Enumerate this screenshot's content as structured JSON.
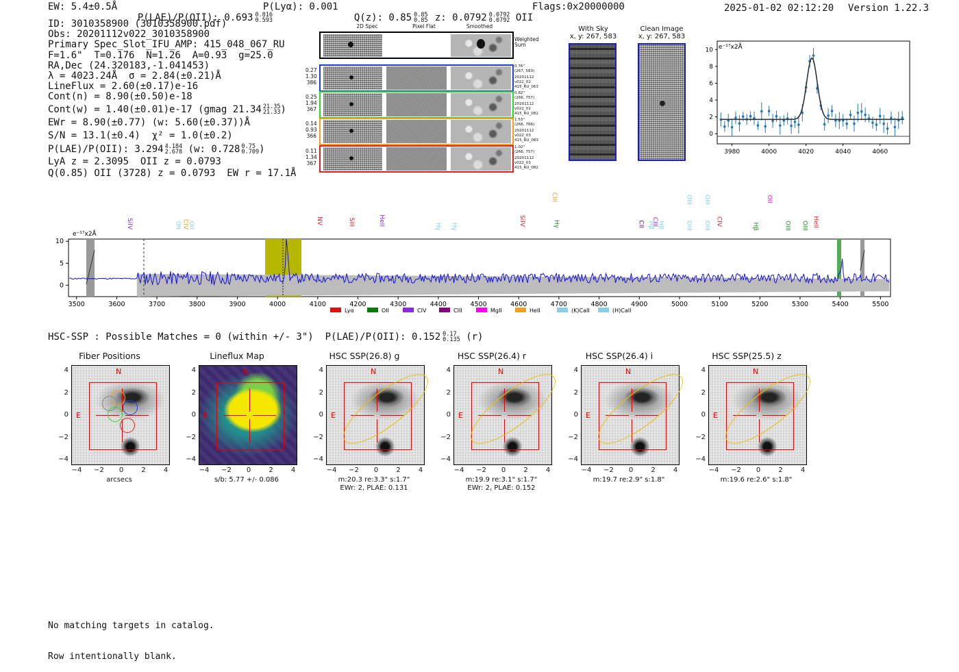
{
  "header": {
    "ew": "EW: 5.4±0.5Å",
    "plae_label": "P(LAE)/P(OII): 0.693",
    "plae_hi": "0.816",
    "plae_lo": "0.593",
    "plya": "P(Lyα): 0.001",
    "q_label": "Q(z): 0.85",
    "q_hi": "0.85",
    "q_lo": "0.85",
    "z_label": "z: 0.0792",
    "z_hi": "0.0792",
    "z_lo": "0.0792",
    "z_line": "OII",
    "flags": "Flags:0x20000000",
    "timestamp": "2025-01-02 02:12:20",
    "version": "Version 1.22.3"
  },
  "info": {
    "lines": [
      "ID: 3010358900 (3010358900.pdf)",
      "Obs: 20201112v022_3010358900",
      "Primary Spec_Slot_IFU_AMP: 415_048_067_RU",
      "F=1.6\"  T=0.176  N=1.26  A=0.93  g=25.0",
      "RA,Dec (24.320183,-1.041453)",
      "λ = 4023.24Å  σ = 2.84(±0.21)Å",
      "LineFlux = 2.60(±0.17)e-16",
      "Cont(n) = 8.90(±0.50)e-18"
    ],
    "contw": "Cont(w) = 1.40(±0.01)e-17 (gmag 21.34",
    "contw_hi": "21.35",
    "contw_lo": "21.33",
    "ewr": "EWr = 8.90(±0.77) (w: 5.60(±0.37))Å",
    "sn": "S/N = 13.1(±0.4)  χ² = 1.0(±0.2)",
    "plae2": "P(LAE)/P(OII): 3.294",
    "plae2_hi": "4.184",
    "plae2_lo": "2.678",
    "plae2_w": "(w: 0.728",
    "plae2_w_hi": "0.75",
    "plae2_w_lo": "0.709",
    "lya_z": "LyA z = 2.3095  OII z = 0.0793",
    "q_line": "Q(0.85) OII (3728) z = 0.0793  EW r = 17.1Å"
  },
  "fiber_cutouts": {
    "col_titles": [
      "2D Spec",
      "Pixel Flat",
      "Smoothed"
    ],
    "weighted_sum": "Weighted Sum",
    "rows": [
      {
        "vals": [
          "0.27",
          "1.30",
          "386"
        ],
        "side": [
          "0.76\"",
          "(267, 583)",
          "20201112",
          "v022_02",
          "415_RU_063"
        ],
        "color": "#1f3fd0"
      },
      {
        "vals": [
          "0.25",
          "1.94",
          "367"
        ],
        "side": [
          "0.82\"",
          "(266, 757)",
          "20201112",
          "v022_01",
          "415_RU_082"
        ],
        "color": "#2bd62b"
      },
      {
        "vals": [
          "0.14",
          "0.93",
          "366"
        ],
        "side": [
          "1.53\"",
          "(266, 766)",
          "20201112",
          "v022_03",
          "415_RU_083"
        ],
        "color": "#f0a020"
      },
      {
        "vals": [
          "0.11",
          "1.34",
          "367"
        ],
        "side": [
          "1.02\"",
          "(266, 757)",
          "20201112",
          "v022_03",
          "415_RU_082"
        ],
        "color": "#e02020"
      }
    ]
  },
  "sky_panels": {
    "with_sky_title": "With Sky",
    "with_sky_xy": "x, y: 267, 583",
    "clean_title": "Clean Image",
    "clean_xy": "x, y: 267, 583"
  },
  "line_fit": {
    "unit_label": "e⁻¹⁷x2Å",
    "yticks": [
      "0",
      "2",
      "4",
      "6",
      "8",
      "10"
    ],
    "xticks": [
      "3980",
      "4000",
      "4020",
      "4040",
      "4060"
    ]
  },
  "spectrum": {
    "unit_label": "e⁻¹⁷x2Å",
    "yticks": [
      "10",
      "5",
      "0"
    ],
    "xticks": [
      "3500",
      "3600",
      "3700",
      "3800",
      "3900",
      "4000",
      "4100",
      "4200",
      "4300",
      "4400",
      "4500",
      "4600",
      "4700",
      "4800",
      "4900",
      "5000",
      "5100",
      "5200",
      "5300",
      "5400",
      "5500"
    ],
    "line_labels": [
      {
        "t": "SiIV",
        "c": "#8a2be2"
      },
      {
        "t": "OII",
        "c": "#87ceeb"
      },
      {
        "t": "CIV",
        "c": "#f0a020"
      },
      {
        "t": "OII",
        "c": "#87ceeb"
      },
      {
        "t": "NV",
        "c": "#e02020"
      },
      {
        "t": "SiII",
        "c": "#e02020"
      },
      {
        "t": "HeII",
        "c": "#8a2be2"
      },
      {
        "t": "Hγ",
        "c": "#87ceeb"
      },
      {
        "t": "Hγ",
        "c": "#87ceeb"
      },
      {
        "t": "SiIV",
        "c": "#e02020"
      },
      {
        "t": "CIII",
        "c": "#f0a020"
      },
      {
        "t": "Hγ",
        "c": "#228b22"
      },
      {
        "t": "CII",
        "c": "#800080"
      },
      {
        "t": "Hβ",
        "c": "#87ceeb"
      },
      {
        "t": "CIII",
        "c": "#8a2be2"
      },
      {
        "t": "Hβ",
        "c": "#87ceeb"
      },
      {
        "t": "OIII",
        "c": "#87ceeb"
      },
      {
        "t": "OIII",
        "c": "#87ceeb"
      },
      {
        "t": "OIII",
        "c": "#87ceeb"
      },
      {
        "t": "OIII",
        "c": "#87ceeb"
      },
      {
        "t": "CIV",
        "c": "#e02020"
      },
      {
        "t": "Hβ",
        "c": "#228b22"
      },
      {
        "t": "OII",
        "c": "#ff00ff"
      },
      {
        "t": "OIII",
        "c": "#228b22"
      },
      {
        "t": "OIII",
        "c": "#228b22"
      },
      {
        "t": "HeII",
        "c": "#e02020"
      }
    ],
    "legend": [
      {
        "name": "Lyα",
        "color": "#e01010"
      },
      {
        "name": "OII",
        "color": "#0a7a0a"
      },
      {
        "name": "CIV",
        "color": "#8a2be2"
      },
      {
        "name": "CIII",
        "color": "#800080"
      },
      {
        "name": "MgII",
        "color": "#ff00ff"
      },
      {
        "name": "HeII",
        "color": "#f0a020"
      },
      {
        "name": "(K)CaII",
        "color": "#87ceeb"
      },
      {
        "name": "(H)CaII",
        "color": "#87ceeb"
      }
    ]
  },
  "hsc": {
    "heading": "HSC-SSP : Possible Matches = 0 (within +/- 3\")  P(LAE)/P(OII): 0.152",
    "heading_hi": "0.17",
    "heading_lo": "0.135",
    "heading_band": "(r)",
    "panels": [
      {
        "title": "Fiber Positions",
        "caption1": "arcsecs",
        "caption2": ""
      },
      {
        "title": "Lineflux Map",
        "caption1": "s/b: 5.77 +/- 0.086",
        "caption2": ""
      },
      {
        "title": "HSC SSP(26.8) g",
        "caption1": "m:20.3  re:3.3\"  s:1.7\"",
        "caption2": "EWr: 2, PLAE: 0.131"
      },
      {
        "title": "HSC SSP(26.4) r",
        "caption1": "m:19.9  re:3.1\"  s:1.7\"",
        "caption2": "EWr: 2, PLAE: 0.152"
      },
      {
        "title": "HSC SSP(26.4) i",
        "caption1": "m:19.7  re:2.9\"  s:1.8\"",
        "caption2": ""
      },
      {
        "title": "HSC SSP(25.5) z",
        "caption1": "m:19.6  re:2.6\"  s:1.8\"",
        "caption2": ""
      }
    ],
    "yticks": [
      "4",
      "2",
      "0",
      "−2",
      "−4"
    ],
    "xticks": [
      "−4",
      "−2",
      "0",
      "2",
      "4"
    ],
    "north": "N",
    "east": "E"
  },
  "footer": {
    "line1": "No matching targets in catalog.",
    "line2": "Row intentionally blank."
  }
}
